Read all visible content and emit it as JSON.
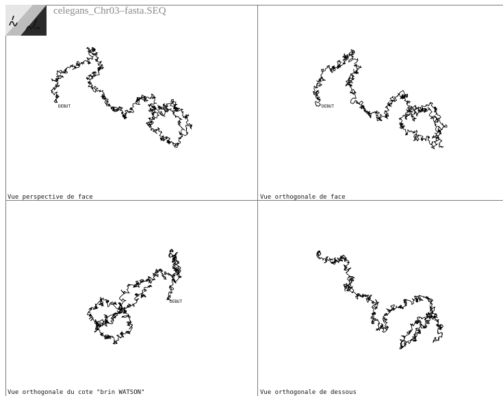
{
  "window": {
    "title": "celegans_Chr03–fasta.SEQ",
    "logo_text": ""
  },
  "views": [
    {
      "label": "Vue perspective de face",
      "start_marker": "DEBUT"
    },
    {
      "label": "Vue orthogonale de face",
      "start_marker": "DEBUT"
    },
    {
      "label": "Vue orthogonale du cote \"brin WATSON\"",
      "start_marker": "DEBUT"
    },
    {
      "label": "Vue orthogonale de dessous",
      "start_marker": ""
    }
  ]
}
